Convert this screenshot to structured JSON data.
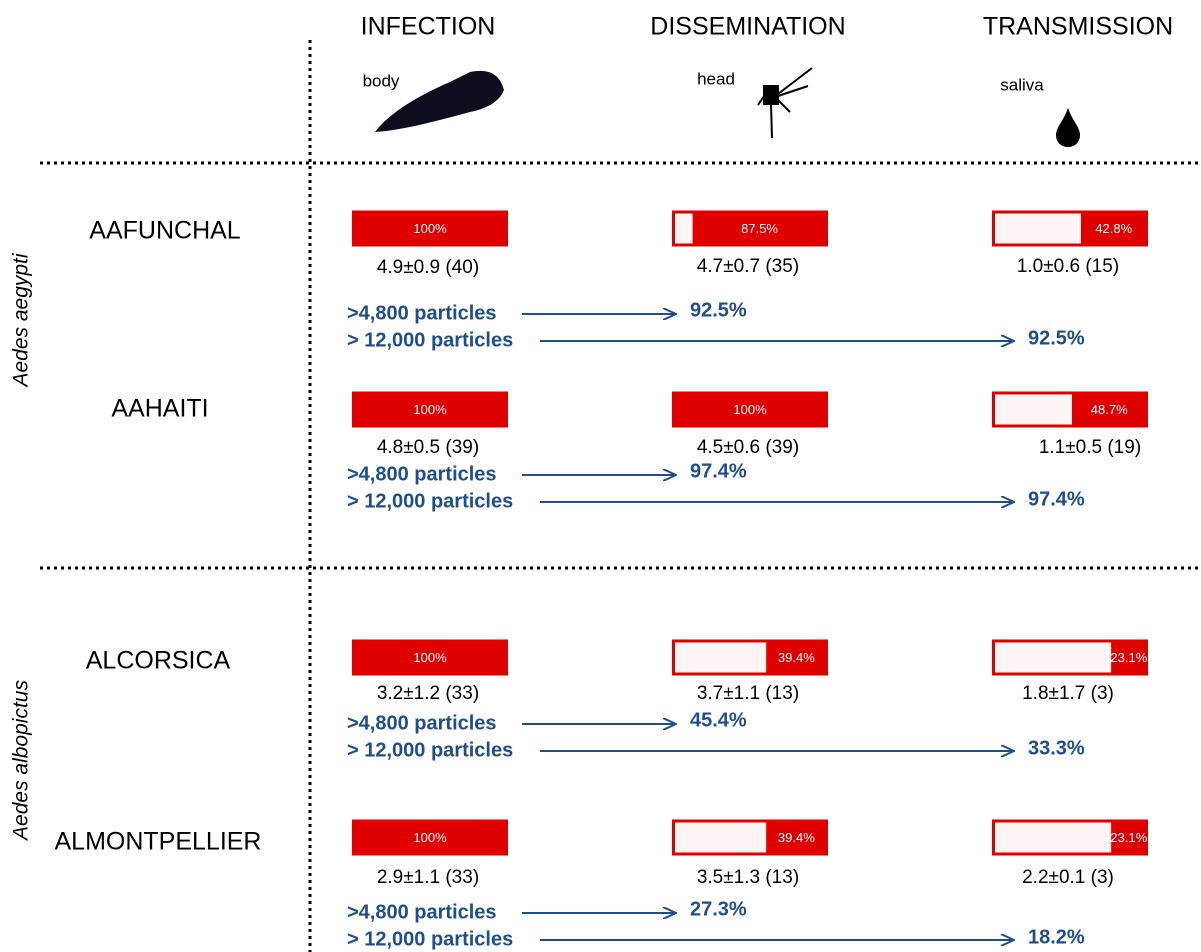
{
  "headers": [
    {
      "title": "INFECTION",
      "tissue": "body"
    },
    {
      "title": "DISSEMINATION",
      "tissue": "head"
    },
    {
      "title": "TRANSMISSION",
      "tissue": "saliva"
    }
  ],
  "groups": [
    {
      "species": "Aedes aegypti",
      "strains": [
        {
          "name": "AAFUNCHAL",
          "bars": [
            {
              "value": 100,
              "value_label": "100%",
              "stat": "4.9±0.9 (40)"
            },
            {
              "value": 87.5,
              "value_label": "87.5%",
              "stat": "4.7±0.7 (35)"
            },
            {
              "value": 42.8,
              "value_label": "42.8%",
              "stat": "1.0±0.6 (15)"
            }
          ],
          "arrows": [
            {
              "label": ">4,800 particles",
              "result": "92.5%"
            },
            {
              "label": "> 12,000 particles",
              "result": "92.5%"
            }
          ]
        },
        {
          "name": "AAHAITI",
          "bars": [
            {
              "value": 100,
              "value_label": "100%",
              "stat": "4.8±0.5 (39)"
            },
            {
              "value": 100,
              "value_label": "100%",
              "stat": "4.5±0.6 (39)"
            },
            {
              "value": 48.7,
              "value_label": "48.7%",
              "stat": "1.1±0.5 (19)"
            }
          ],
          "arrows": [
            {
              "label": ">4,800 particles",
              "result": "97.4%"
            },
            {
              "label": "> 12,000 particles",
              "result": "97.4%"
            }
          ]
        }
      ]
    },
    {
      "species": "Aedes albopictus",
      "strains": [
        {
          "name": "ALCORSICA",
          "bars": [
            {
              "value": 100,
              "value_label": "100%",
              "stat": "3.2±1.2 (33)"
            },
            {
              "value": 39.4,
              "value_label": "39.4%",
              "stat": "3.7±1.1 (13)"
            },
            {
              "value": 23.1,
              "value_label": "23.1%",
              "stat": "1.8±1.7 (3)"
            }
          ],
          "arrows": [
            {
              "label": ">4,800 particles",
              "result": "45.4%"
            },
            {
              "label": "> 12,000 particles",
              "result": "33.3%"
            }
          ]
        },
        {
          "name": "ALMONTPELLIER",
          "bars": [
            {
              "value": 100,
              "value_label": "100%",
              "stat": "2.9±1.1 (33)"
            },
            {
              "value": 39.4,
              "value_label": "39.4%",
              "stat": "3.5±1.3 (13)"
            },
            {
              "value": 23.1,
              "value_label": "23.1%",
              "stat": "2.2±0.1 (3)"
            }
          ],
          "arrows": [
            {
              "label": ">4,800 particles",
              "result": "27.3%"
            },
            {
              "label": "> 12,000 particles",
              "result": "18.2%"
            }
          ]
        }
      ]
    }
  ]
}
